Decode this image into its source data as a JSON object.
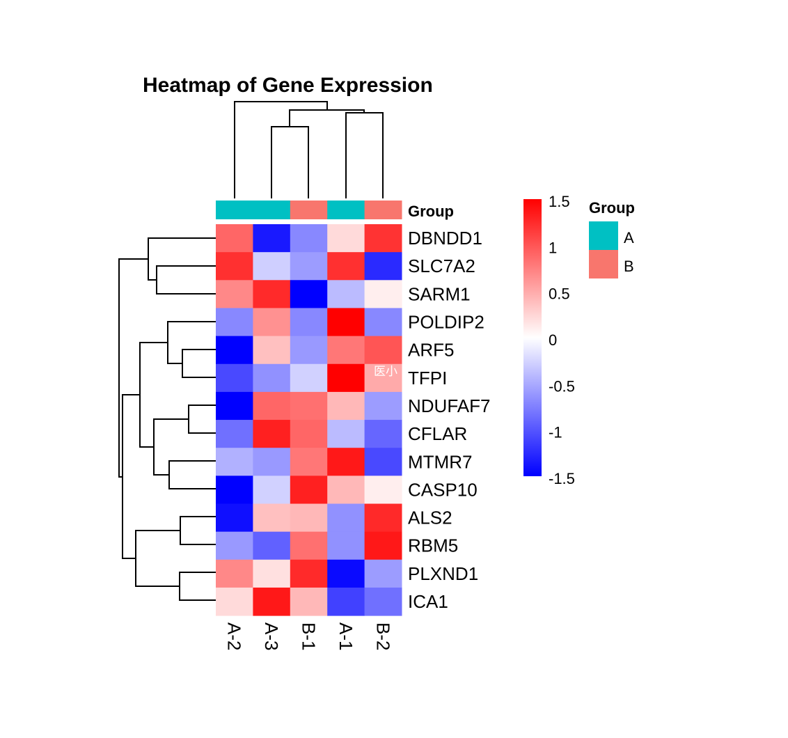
{
  "chart_data": {
    "type": "heatmap",
    "title": "Heatmap of Gene Expression",
    "columns": [
      "A-2",
      "A-3",
      "B-1",
      "A-1",
      "B-2"
    ],
    "rows": [
      "DBNDD1",
      "SLC7A2",
      "SARM1",
      "POLDIP2",
      "ARF5",
      "TFPI",
      "NDUFAF7",
      "CFLAR",
      "MTMR7",
      "CASP10",
      "ALS2",
      "RBM5",
      "PLXND1",
      "ICA1"
    ],
    "values": [
      [
        0.9,
        -1.35,
        -0.7,
        0.22,
        1.2
      ],
      [
        1.22,
        -0.28,
        -0.58,
        1.22,
        -1.25
      ],
      [
        0.7,
        1.25,
        -1.5,
        -0.4,
        0.1
      ],
      [
        -0.7,
        0.65,
        -0.7,
        1.5,
        -0.7
      ],
      [
        -1.5,
        0.37,
        -0.6,
        0.8,
        1.0
      ],
      [
        -1.07,
        -0.65,
        -0.27,
        1.5,
        0.5
      ],
      [
        -1.5,
        0.9,
        0.84,
        0.42,
        -0.58
      ],
      [
        -0.84,
        1.31,
        0.9,
        -0.4,
        -0.9
      ],
      [
        -0.46,
        -0.6,
        0.8,
        1.36,
        -1.07
      ],
      [
        -1.5,
        -0.27,
        1.31,
        0.42,
        0.1
      ],
      [
        -1.41,
        0.37,
        0.42,
        -0.65,
        1.26
      ],
      [
        -0.6,
        -0.93,
        0.84,
        -0.65,
        1.36
      ],
      [
        0.7,
        0.18,
        1.25,
        -1.44,
        -0.58
      ],
      [
        0.22,
        1.36,
        0.42,
        -1.12,
        -0.84
      ]
    ],
    "annotation": {
      "name": "Group",
      "values": [
        "A",
        "A",
        "B",
        "A",
        "B"
      ],
      "colors": {
        "A": "#00C0C3",
        "B": "#F8766D"
      }
    },
    "color_scale": {
      "low": "#0000FF",
      "mid": "#FFFFFF",
      "high": "#FF0000",
      "range": [
        -1.5,
        1.5
      ],
      "ticks": [
        "1.5",
        "1",
        "0.5",
        "0",
        "-0.5",
        "-1",
        "-1.5"
      ]
    },
    "legend": {
      "title": "Group",
      "items": [
        "A",
        "B"
      ],
      "placement": "right"
    },
    "row_dendrogram": true,
    "column_dendrogram": true,
    "watermark": "医小"
  }
}
